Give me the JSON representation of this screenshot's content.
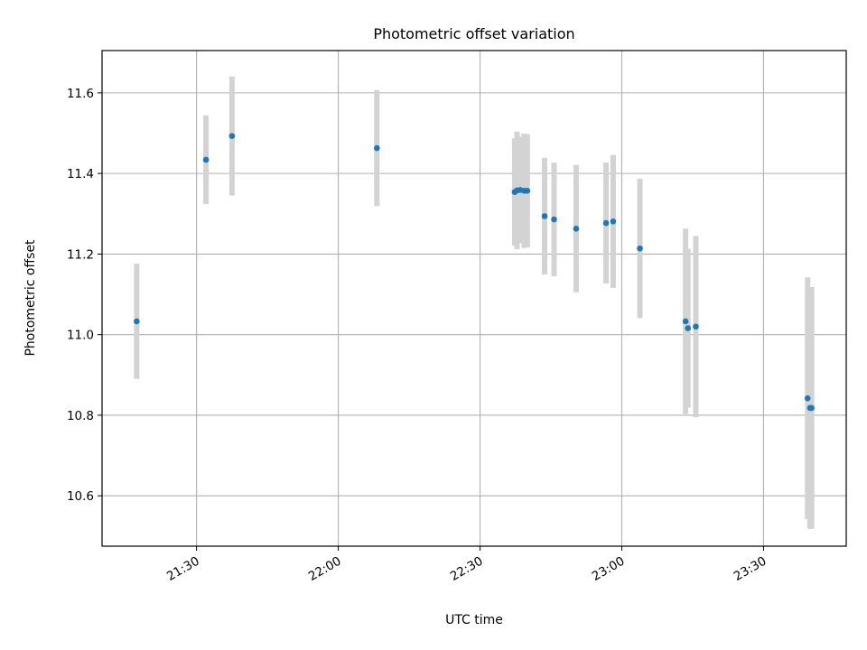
{
  "chart_data": {
    "type": "scatter",
    "title": "Photometric offset variation",
    "xlabel": "UTC time",
    "ylabel": "Photometric offset",
    "x_axis": "time (HH:MM)",
    "xlim": [
      "21:10:00",
      "23:47:30"
    ],
    "ylim": [
      10.475,
      11.705
    ],
    "x_ticks": [
      "21:30",
      "22:00",
      "22:30",
      "23:00",
      "23:30"
    ],
    "y_ticks": [
      10.6,
      10.8,
      11.0,
      11.2,
      11.4,
      11.6
    ],
    "y_tick_labels": [
      "10.6",
      "10.8",
      "11.0",
      "11.2",
      "11.4",
      "11.6"
    ],
    "grid": true,
    "colors": {
      "marker": "#1f77b4",
      "errorbar": "#d3d3d3"
    },
    "series": [
      {
        "points": [
          {
            "t": "21:17:20",
            "y": 11.033,
            "err": 0.143
          },
          {
            "t": "21:32:00",
            "y": 11.434,
            "err": 0.11
          },
          {
            "t": "21:37:30",
            "y": 11.493,
            "err": 0.148
          },
          {
            "t": "22:08:10",
            "y": 11.463,
            "err": 0.144
          },
          {
            "t": "22:37:20",
            "y": 11.354,
            "err": 0.133
          },
          {
            "t": "22:37:50",
            "y": 11.358,
            "err": 0.146
          },
          {
            "t": "22:38:30",
            "y": 11.359,
            "err": 0.132
          },
          {
            "t": "22:39:20",
            "y": 11.357,
            "err": 0.142
          },
          {
            "t": "22:40:00",
            "y": 11.357,
            "err": 0.14
          },
          {
            "t": "22:43:40",
            "y": 11.294,
            "err": 0.145
          },
          {
            "t": "22:45:40",
            "y": 11.286,
            "err": 0.141
          },
          {
            "t": "22:50:20",
            "y": 11.263,
            "err": 0.158
          },
          {
            "t": "22:56:40",
            "y": 11.277,
            "err": 0.15
          },
          {
            "t": "22:58:10",
            "y": 11.281,
            "err": 0.165
          },
          {
            "t": "23:03:50",
            "y": 11.214,
            "err": 0.173
          },
          {
            "t": "23:13:30",
            "y": 11.033,
            "err": 0.23
          },
          {
            "t": "23:14:00",
            "y": 11.016,
            "err": 0.197
          },
          {
            "t": "23:15:40",
            "y": 11.02,
            "err": 0.225
          },
          {
            "t": "23:39:20",
            "y": 10.842,
            "err": 0.3
          },
          {
            "t": "23:39:50",
            "y": 10.818,
            "err": 0.3
          },
          {
            "t": "23:40:10",
            "y": 10.818,
            "err": 0.3
          }
        ]
      }
    ]
  }
}
